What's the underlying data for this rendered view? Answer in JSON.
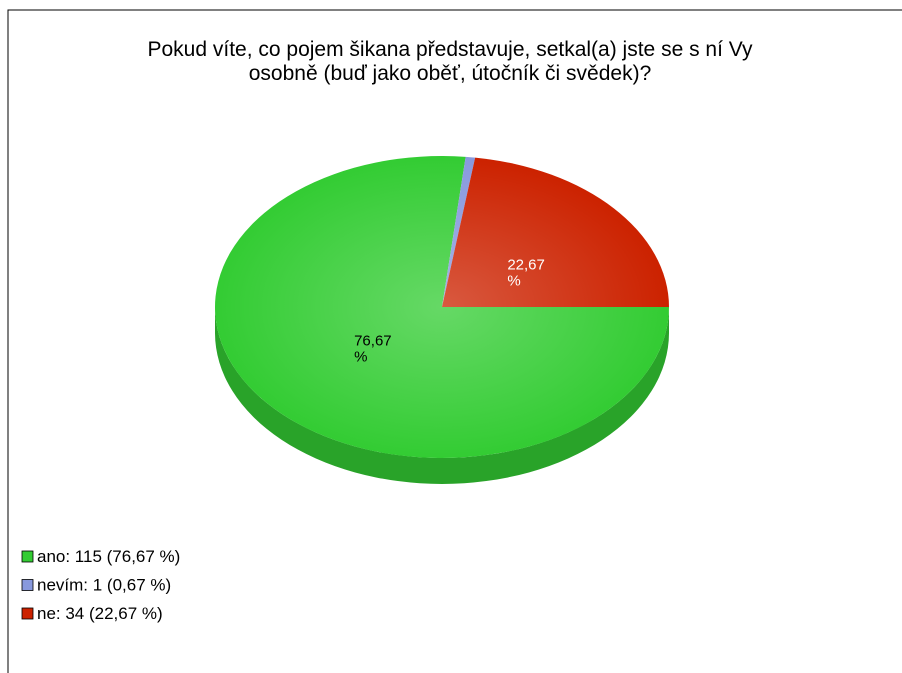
{
  "chart_data": {
    "type": "pie",
    "title": [
      "Pokud víte, co pojem šikana představuje, setkal(a) jste se s ní Vy",
      "osobně (buď jako oběť, útočník či svědek)?"
    ],
    "categories": [
      "ano: 115 (76,67 %)",
      "nevím: 1 (0,67 %)",
      "ne: 34 (22,67 %)"
    ],
    "values": [
      76.67,
      0.67,
      22.67
    ],
    "value_labels": [
      "76,67 %",
      null,
      "22,67 %"
    ],
    "colors": [
      "#33cc33",
      "#8899dd",
      "#cc2200"
    ]
  }
}
